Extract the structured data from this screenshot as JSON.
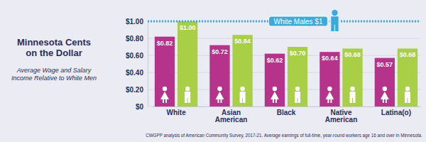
{
  "chart_data": {
    "type": "bar",
    "title": "Minnesota Cents on the Dollar",
    "subtitle": "Average Wage and Salary Income Relative to White Men",
    "categories": [
      "White",
      "Asian American",
      "Black",
      "Native American",
      "Latina(o)"
    ],
    "series": [
      {
        "color": "#b5338a",
        "values": [
          0.82,
          0.72,
          0.62,
          0.64,
          0.57
        ],
        "value_labels": [
          "$0.82",
          "$0.72",
          "$0.62",
          "$0.64",
          "$0.57"
        ]
      },
      {
        "color": "#a8cf45",
        "values": [
          1.0,
          0.84,
          0.7,
          0.68,
          0.68
        ],
        "value_labels": [
          "$1.00",
          "$0.84",
          "$0.70",
          "$0.68",
          "$0.68"
        ]
      }
    ],
    "ylim": [
      0,
      1
    ],
    "yticks": [
      {
        "value": 0,
        "label": "$0"
      },
      {
        "value": 0.2,
        "label": "$0.20"
      },
      {
        "value": 0.4,
        "label": "$0.40"
      },
      {
        "value": 0.6,
        "label": "$0.60"
      },
      {
        "value": 0.8,
        "label": "$0.80"
      },
      {
        "value": 1,
        "label": "$1.00"
      }
    ],
    "grid": true,
    "data_labels": true,
    "annotations": [
      {
        "text": "White Males $1",
        "value": 1
      }
    ],
    "source": "CWGPP analysis of American Community Survey, 2017-21. Average earnings of full-time, year-round workers age 16 and over in Minnesota."
  }
}
